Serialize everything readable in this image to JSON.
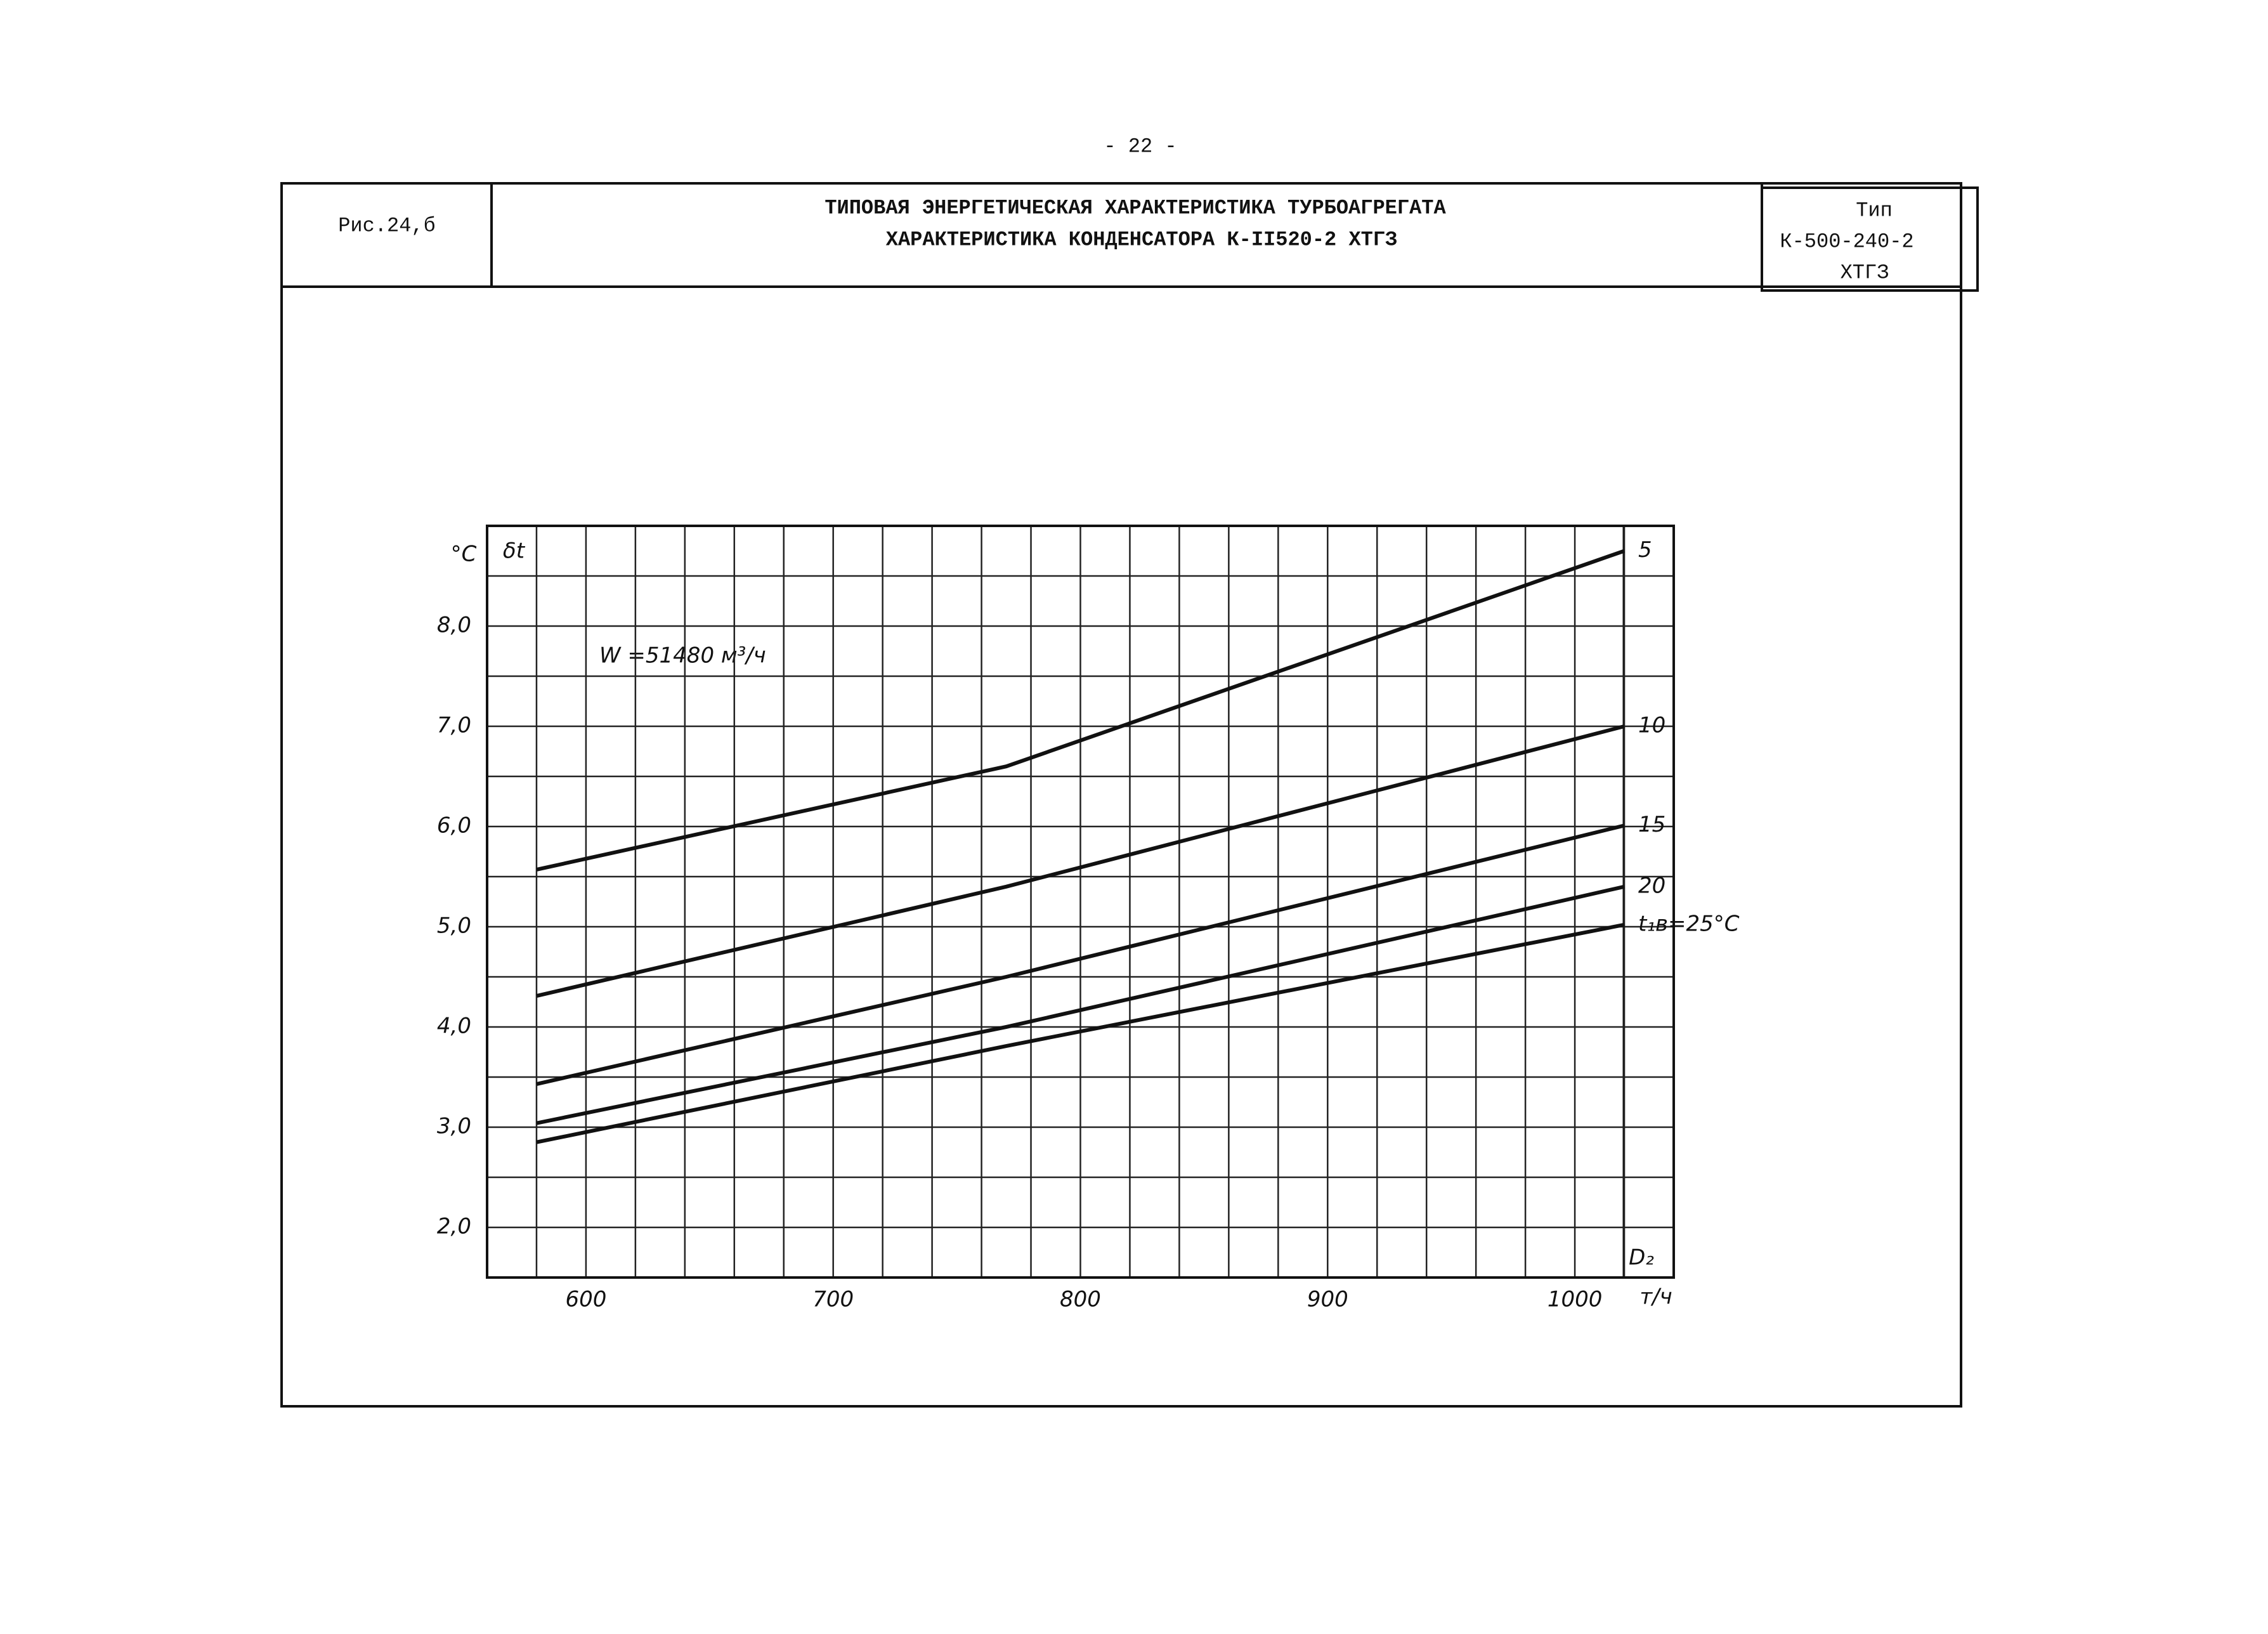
{
  "page_number": "- 22 -",
  "header": {
    "figure": "Рис.24,б",
    "title": [
      "ТИПОВАЯ ЭНЕРГЕТИЧЕСКАЯ ХАРАКТЕРИСТИКА ТУРБОАГРЕГАТА",
      "ХАРАКТЕРИСТИКА КОНДЕНСАТОРА К-II520-2 ХТГЗ"
    ],
    "type": [
      "Тип",
      "К-500-240-2",
      "ХТГЗ"
    ]
  },
  "chart_data": {
    "type": "line",
    "y_unit": "°C",
    "y_label": "δt",
    "annotation": "W =51480 м³/ч",
    "x_label": "D₂",
    "x_unit": "т/ч",
    "x": [
      580,
      770,
      1020
    ],
    "series": [
      {
        "name": "5",
        "color": "#111",
        "values": [
          5.57,
          6.6,
          8.75
        ]
      },
      {
        "name": "10",
        "color": "#111",
        "values": [
          4.31,
          5.4,
          7.0
        ]
      },
      {
        "name": "15",
        "color": "#111",
        "values": [
          3.43,
          4.5,
          6.01
        ]
      },
      {
        "name": "20",
        "color": "#111",
        "values": [
          3.04,
          4.0,
          5.4
        ]
      },
      {
        "name": "t₁в=25°C",
        "color": "#111",
        "values": [
          2.85,
          3.81,
          5.02
        ]
      }
    ],
    "xlim": [
      560,
      1040
    ],
    "ylim": [
      1.5,
      9.0
    ],
    "xticks": [
      600,
      700,
      800,
      900,
      1000
    ],
    "yticks": [
      {
        "value": 2,
        "label": "2,0"
      },
      {
        "value": 3,
        "label": "3,0"
      },
      {
        "value": 4,
        "label": "4,0"
      },
      {
        "value": 5,
        "label": "5,0"
      },
      {
        "value": 6,
        "label": "6,0"
      },
      {
        "value": 7,
        "label": "7,0"
      },
      {
        "value": 8,
        "label": "8,0"
      }
    ],
    "xgrid": [
      580,
      600,
      620,
      640,
      660,
      680,
      700,
      720,
      740,
      760,
      780,
      800,
      820,
      840,
      860,
      880,
      900,
      920,
      940,
      960,
      980,
      1000,
      1020
    ],
    "ygrid": [
      2.0,
      2.5,
      3.0,
      3.5,
      4.0,
      4.5,
      5.0,
      5.5,
      6.0,
      6.5,
      7.0,
      7.5,
      8.0,
      8.5
    ],
    "grid": true
  }
}
